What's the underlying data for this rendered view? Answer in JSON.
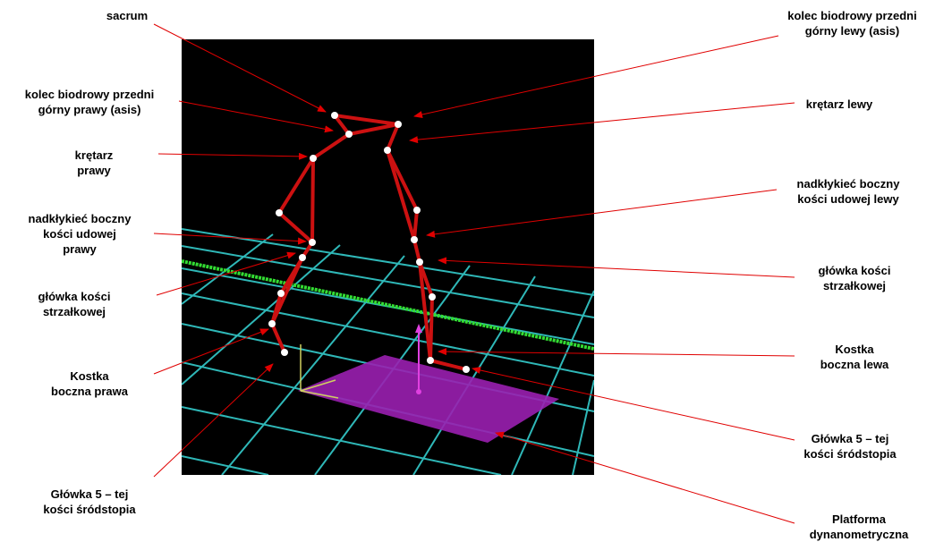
{
  "labels": {
    "sacrum": [
      "sacrum"
    ],
    "asis_left": [
      "kolec biodrowy przedni",
      "górny lewy (asis)"
    ],
    "asis_right": [
      "kolec biodrowy przedni",
      "górny prawy (asis)"
    ],
    "trochanter_left": [
      "krętarz lewy"
    ],
    "trochanter_right": [
      "krętarz",
      "prawy"
    ],
    "epicondyle_left": [
      "nadkłykieć boczny",
      "kości udowej lewy"
    ],
    "epicondyle_right": [
      "nadkłykieć boczny",
      "kości udowej",
      "prawy"
    ],
    "fibula_head_left": [
      "główka kości",
      "strzałkowej"
    ],
    "fibula_head_right": [
      "główka kości",
      "strzałkowej"
    ],
    "ankle_left": [
      "Kostka",
      "boczna lewa"
    ],
    "ankle_right": [
      "Kostka",
      "boczna prawa"
    ],
    "metatarsal_left": [
      "Główka 5 – tej",
      "kości śródstopia"
    ],
    "metatarsal_right": [
      "Główka 5 – tej",
      "kości śródstopia"
    ],
    "platform": [
      "Platforma",
      "dynanometryczna"
    ]
  },
  "colors": {
    "background": "#000000",
    "grid": "#2fb8b8",
    "axis_line": "#33dd33",
    "skeleton": "#cc1111",
    "marker": "#ffffff",
    "platform": "#9a1fb0",
    "force_vector": "#e040e0",
    "arrow": "#e00000"
  }
}
